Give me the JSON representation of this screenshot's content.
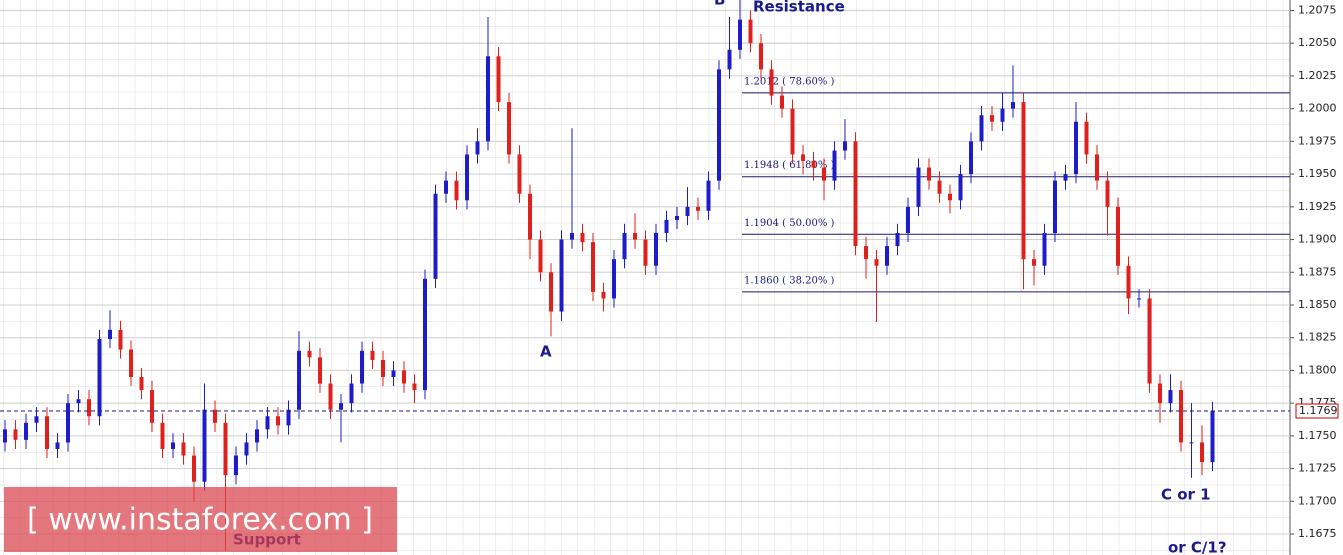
{
  "chart_data": {
    "type": "candlestick",
    "up_color": "#1c1cc8",
    "down_color": "#e0201c",
    "ylim": [
      1.1659,
      1.2083
    ],
    "yticks": [
      1.2075,
      {
        "value": 1.205,
        "label": "1.2050"
      },
      1.2025,
      {
        "value": 1.2,
        "label": "1.2000"
      },
      1.1975,
      {
        "value": 1.195,
        "label": "1.1950"
      },
      1.1925,
      {
        "value": 1.19,
        "label": "1.1900"
      },
      1.1875,
      {
        "value": 1.185,
        "label": "1.1850"
      },
      1.1825,
      {
        "value": 1.18,
        "label": "1.1800"
      },
      1.1775,
      {
        "value": 1.175,
        "label": "1.1750"
      },
      1.1725,
      {
        "value": 1.17,
        "label": "1.1700"
      },
      1.1675
    ],
    "grid": true,
    "open": [
      1.1745,
      1.1755,
      1.1747,
      1.176,
      1.1765,
      1.174,
      1.1745,
      1.1775,
      1.1778,
      1.1765,
      1.1824,
      1.1831,
      1.1816,
      1.1795,
      1.1785,
      1.176,
      1.174,
      1.1745,
      1.1735,
      1.1715,
      1.177,
      1.176,
      1.172,
      1.1735,
      1.1745,
      1.1755,
      1.1765,
      1.1758,
      1.177,
      1.1815,
      1.181,
      1.179,
      1.177,
      1.1775,
      1.179,
      1.1815,
      1.1808,
      1.1795,
      1.18,
      1.179,
      1.1785,
      1.187,
      1.1935,
      1.1945,
      1.193,
      1.1965,
      1.1975,
      1.204,
      1.2005,
      1.1965,
      1.1935,
      1.19,
      1.1875,
      1.1845,
      1.19,
      1.1905,
      1.1898,
      1.186,
      1.1855,
      1.1885,
      1.1905,
      1.19,
      1.188,
      1.1905,
      1.1915,
      1.1918,
      1.1925,
      1.1922,
      1.1945,
      1.203,
      1.2045,
      1.2068,
      1.205,
      1.203,
      1.201,
      1.2,
      1.1965,
      1.196,
      1.1955,
      1.1945,
      1.1968,
      1.1975,
      1.1895,
      1.1885,
      1.188,
      1.1895,
      1.1905,
      1.1925,
      1.1955,
      1.1945,
      1.1935,
      1.193,
      1.195,
      1.1975,
      1.1995,
      1.199,
      1.2,
      1.2005,
      1.1885,
      1.188,
      1.1905,
      1.1945,
      1.195,
      1.199,
      1.1965,
      1.1945,
      1.1925,
      1.188,
      1.1855,
      1.1855,
      1.179,
      1.1775,
      1.1785,
      1.1745,
      1.1745,
      1.173
    ],
    "high": [
      1.1762,
      1.1762,
      1.1767,
      1.1772,
      1.1772,
      1.1752,
      1.1782,
      1.1785,
      1.1785,
      1.1831,
      1.1846,
      1.1838,
      1.1823,
      1.1802,
      1.1792,
      1.1767,
      1.1752,
      1.1752,
      1.1742,
      1.179,
      1.1777,
      1.1767,
      1.1742,
      1.1752,
      1.1762,
      1.1772,
      1.1772,
      1.1777,
      1.183,
      1.1822,
      1.1817,
      1.1797,
      1.1782,
      1.1797,
      1.1822,
      1.1822,
      1.1815,
      1.1807,
      1.1807,
      1.1797,
      1.1877,
      1.1942,
      1.1952,
      1.1952,
      1.1972,
      1.1985,
      1.207,
      1.2047,
      1.2012,
      1.1972,
      1.1942,
      1.1907,
      1.1882,
      1.1907,
      1.1985,
      1.1912,
      1.1905,
      1.1867,
      1.1892,
      1.1912,
      1.192,
      1.1907,
      1.1912,
      1.1922,
      1.1925,
      1.194,
      1.1932,
      1.1952,
      1.2037,
      1.207,
      1.2083,
      1.2075,
      1.2057,
      1.2037,
      1.2017,
      1.2007,
      1.1972,
      1.1967,
      1.1962,
      1.1975,
      1.1992,
      1.1982,
      1.1902,
      1.1892,
      1.1902,
      1.1912,
      1.1932,
      1.1962,
      1.1962,
      1.1952,
      1.1942,
      1.1957,
      1.1982,
      1.2002,
      1.2002,
      1.2012,
      1.2033,
      1.2012,
      1.1892,
      1.1912,
      1.1952,
      1.1957,
      1.2005,
      1.1997,
      1.1972,
      1.1952,
      1.1932,
      1.1887,
      1.1862,
      1.1862,
      1.1797,
      1.1797,
      1.1792,
      1.1775,
      1.1758,
      1.1776
    ],
    "low": [
      1.1738,
      1.174,
      1.174,
      1.1753,
      1.1733,
      1.1733,
      1.1738,
      1.1768,
      1.1758,
      1.1758,
      1.1817,
      1.1809,
      1.1788,
      1.1778,
      1.1753,
      1.1733,
      1.1733,
      1.1728,
      1.17,
      1.1708,
      1.1753,
      1.1662,
      1.1713,
      1.1728,
      1.1738,
      1.1748,
      1.1751,
      1.1751,
      1.1763,
      1.1803,
      1.1783,
      1.1763,
      1.1745,
      1.1768,
      1.1783,
      1.1801,
      1.1788,
      1.1788,
      1.1783,
      1.1775,
      1.1778,
      1.1863,
      1.1928,
      1.1923,
      1.1923,
      1.1958,
      1.1968,
      1.1998,
      1.1958,
      1.1928,
      1.1885,
      1.1868,
      1.1826,
      1.1838,
      1.1893,
      1.1891,
      1.1853,
      1.1845,
      1.1848,
      1.1878,
      1.1893,
      1.1873,
      1.1873,
      1.1898,
      1.1908,
      1.1911,
      1.1915,
      1.1915,
      1.1938,
      1.2023,
      1.2038,
      1.2043,
      1.2023,
      1.2003,
      1.1993,
      1.1958,
      1.195,
      1.1945,
      1.193,
      1.1938,
      1.1961,
      1.1888,
      1.187,
      1.1837,
      1.1873,
      1.1888,
      1.1898,
      1.1918,
      1.1938,
      1.1928,
      1.192,
      1.1923,
      1.1943,
      1.1968,
      1.1983,
      1.1983,
      1.1993,
      1.1862,
      1.1865,
      1.1873,
      1.1898,
      1.1938,
      1.1943,
      1.1958,
      1.1938,
      1.1903,
      1.1873,
      1.1843,
      1.1848,
      1.1783,
      1.176,
      1.1768,
      1.1738,
      1.1718,
      1.172,
      1.1723
    ],
    "close": [
      1.1755,
      1.1747,
      1.176,
      1.1765,
      1.174,
      1.1745,
      1.1775,
      1.1778,
      1.1765,
      1.1824,
      1.1831,
      1.1816,
      1.1795,
      1.1785,
      1.176,
      1.174,
      1.1745,
      1.1735,
      1.1715,
      1.177,
      1.176,
      1.172,
      1.1735,
      1.1745,
      1.1755,
      1.1765,
      1.1758,
      1.177,
      1.1815,
      1.181,
      1.179,
      1.177,
      1.1775,
      1.179,
      1.1815,
      1.1808,
      1.1795,
      1.18,
      1.179,
      1.1785,
      1.187,
      1.1935,
      1.1945,
      1.193,
      1.1965,
      1.1975,
      1.204,
      1.2005,
      1.1965,
      1.1935,
      1.19,
      1.1875,
      1.1845,
      1.19,
      1.1905,
      1.1898,
      1.186,
      1.1855,
      1.1885,
      1.1905,
      1.19,
      1.188,
      1.1905,
      1.1915,
      1.1918,
      1.1925,
      1.1922,
      1.1945,
      1.203,
      1.2045,
      1.2068,
      1.205,
      1.203,
      1.201,
      1.2,
      1.1965,
      1.196,
      1.1955,
      1.1945,
      1.1968,
      1.1975,
      1.1895,
      1.1885,
      1.188,
      1.1895,
      1.1905,
      1.1925,
      1.1955,
      1.1945,
      1.1935,
      1.193,
      1.195,
      1.1975,
      1.1995,
      1.199,
      1.2,
      1.2005,
      1.1885,
      1.188,
      1.1905,
      1.1945,
      1.195,
      1.199,
      1.1965,
      1.1945,
      1.1925,
      1.188,
      1.1855,
      1.1855,
      1.179,
      1.1775,
      1.1785,
      1.1745,
      1.1745,
      1.173,
      1.1769
    ],
    "fib_levels": [
      {
        "value": 1.2012,
        "label": "1.2012 ( 78.60% )"
      },
      {
        "value": 1.1948,
        "label": "1.1948 ( 61.80% )"
      },
      {
        "value": 1.1904,
        "label": "1.1904 ( 50.00% )"
      },
      {
        "value": 1.186,
        "label": "1.1860 ( 38.20% )"
      }
    ],
    "last_price": 1.1769,
    "annotations": [
      "A",
      "B",
      "Resistance",
      "Support",
      "C or 1",
      "or C/1?"
    ],
    "watermark": "[ www.instaforex.com ]"
  }
}
